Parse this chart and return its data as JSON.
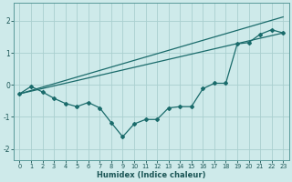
{
  "xlabel": "Humidex (Indice chaleur)",
  "background_color": "#ceeaea",
  "grid_color": "#aacfcf",
  "line_color": "#1a6b6b",
  "xlim": [
    -0.5,
    23.5
  ],
  "ylim": [
    -2.35,
    2.55
  ],
  "yticks": [
    -2,
    -1,
    0,
    1,
    2
  ],
  "xticks": [
    0,
    1,
    2,
    3,
    4,
    5,
    6,
    7,
    8,
    9,
    10,
    11,
    12,
    13,
    14,
    15,
    16,
    17,
    18,
    19,
    20,
    21,
    22,
    23
  ],
  "series": [
    {
      "x": [
        0,
        1,
        2,
        3,
        4,
        5,
        6,
        7,
        8,
        9,
        10,
        11,
        12,
        13,
        14,
        15,
        16,
        17,
        18,
        19,
        20,
        21,
        22,
        23
      ],
      "y": [
        -0.28,
        -0.05,
        -0.22,
        -0.42,
        -0.58,
        -0.68,
        -0.55,
        -0.72,
        -1.18,
        -1.62,
        -1.22,
        -1.08,
        -1.08,
        -0.72,
        -0.68,
        -0.68,
        -0.12,
        0.05,
        0.05,
        1.28,
        1.32,
        1.58,
        1.72,
        1.62
      ],
      "marker": "D",
      "markersize": 2.0,
      "linewidth": 0.9
    },
    {
      "x": [
        0,
        23
      ],
      "y": [
        -0.28,
        1.62
      ],
      "marker": null,
      "markersize": 0,
      "linewidth": 0.9
    },
    {
      "x": [
        0,
        23
      ],
      "y": [
        -0.28,
        2.12
      ],
      "marker": null,
      "markersize": 0,
      "linewidth": 0.9
    }
  ]
}
